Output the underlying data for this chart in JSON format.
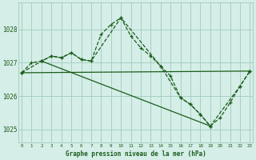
{
  "title": "Graphe pression niveau de la mer (hPa)",
  "bg_color": "#d5eee8",
  "plot_bg_color": "#d5eee8",
  "grid_color": "#a0ccbb",
  "line_color": "#1a5c1a",
  "x_ticks": [
    0,
    1,
    2,
    3,
    4,
    5,
    6,
    7,
    8,
    9,
    10,
    11,
    12,
    13,
    14,
    15,
    16,
    17,
    18,
    19,
    20,
    21,
    22,
    23
  ],
  "y_ticks": [
    1025,
    1026,
    1027,
    1028
  ],
  "ylim": [
    1024.6,
    1028.8
  ],
  "xlim": [
    -0.3,
    23.3
  ],
  "series1": {
    "x": [
      0,
      1,
      2,
      3,
      4,
      5,
      6,
      7,
      8,
      9,
      10,
      11,
      12,
      13,
      14,
      15,
      16,
      17,
      18,
      19,
      20,
      21,
      22,
      23
    ],
    "y": [
      1026.7,
      1027.0,
      1027.05,
      1027.2,
      1027.15,
      1027.3,
      1027.1,
      1027.05,
      1027.85,
      1028.15,
      1028.35,
      1027.8,
      1027.45,
      1027.2,
      1026.9,
      1026.6,
      1025.95,
      1025.75,
      1025.45,
      1025.1,
      1025.35,
      1025.8,
      1026.3,
      1026.75
    ]
  },
  "series2": {
    "x": [
      0,
      2,
      3,
      4,
      5,
      6,
      7,
      10,
      14,
      16,
      17,
      18,
      19,
      22,
      23
    ],
    "y": [
      1026.7,
      1027.05,
      1027.2,
      1027.15,
      1027.3,
      1027.1,
      1027.05,
      1028.35,
      1026.9,
      1025.95,
      1025.75,
      1025.45,
      1025.1,
      1026.3,
      1026.75
    ]
  },
  "series3": {
    "x": [
      0,
      23
    ],
    "y": [
      1026.7,
      1026.75
    ]
  },
  "series4": {
    "x": [
      2,
      19
    ],
    "y": [
      1027.05,
      1025.1
    ]
  }
}
